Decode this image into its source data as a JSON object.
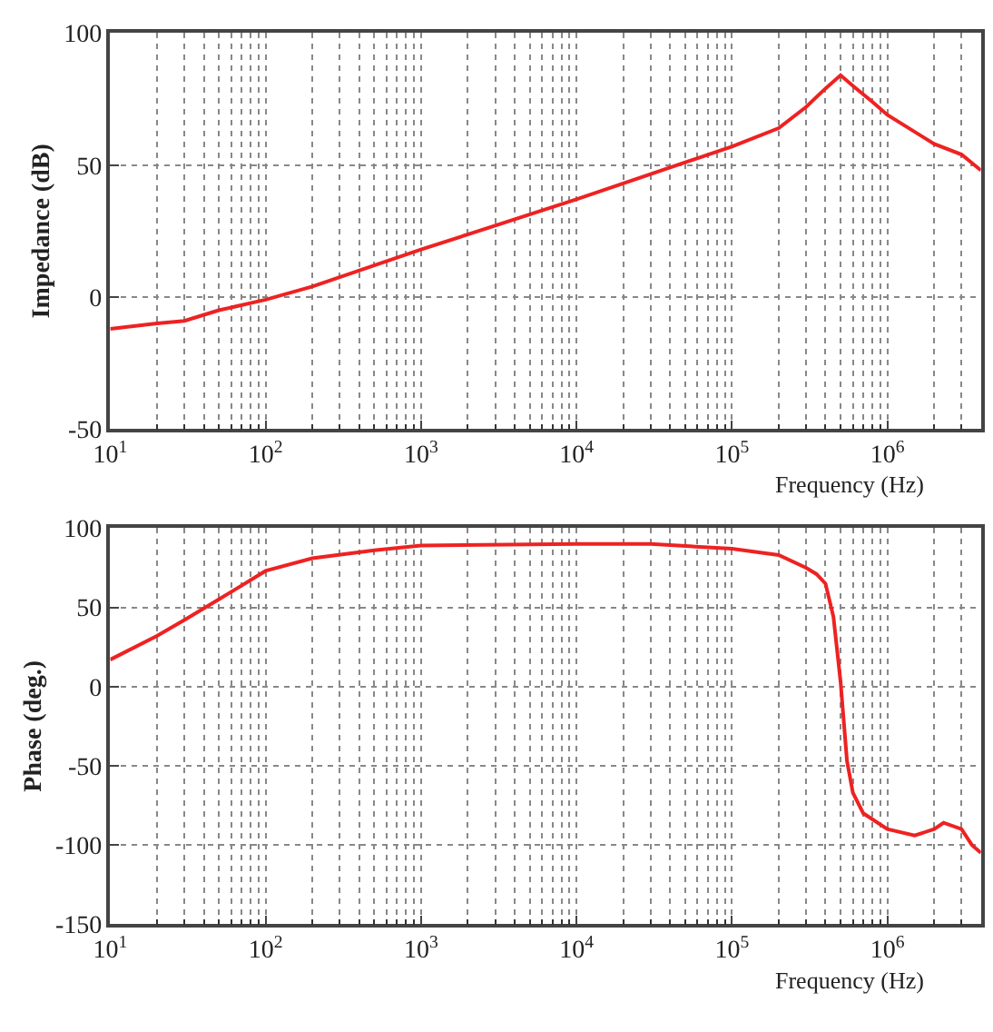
{
  "chart_data": [
    {
      "type": "line",
      "xlabel": "Frequency (Hz)",
      "ylabel": "Impedance (dB)",
      "log": "x",
      "grid": true,
      "line_style": "solid",
      "marker": "none",
      "x": [
        10,
        20,
        30,
        50,
        100,
        200,
        500,
        1000,
        10000,
        100000,
        200000,
        300000,
        400000,
        500000,
        600000,
        800000,
        1000000,
        2000000,
        3000000,
        4000000
      ],
      "series": [
        {
          "color": "#ee2222",
          "values": [
            -12,
            -10,
            -9,
            -5,
            -1,
            4,
            12,
            18,
            37,
            57,
            64,
            72,
            79,
            84,
            80,
            74,
            69,
            58,
            54,
            48
          ]
        }
      ],
      "xlim": [
        10,
        4000000
      ],
      "ylim": [
        -50,
        100
      ],
      "xticks": [
        {
          "value": 10,
          "label": "10$^{1}$"
        },
        {
          "value": 100,
          "label": "10$^{2}$"
        },
        {
          "value": 1000,
          "label": "10$^{3}$"
        },
        {
          "value": 10000,
          "label": "10$^{4}$"
        },
        {
          "value": 100000,
          "label": "10$^{5}$"
        },
        {
          "value": 1000000,
          "label": "10$^{6}$"
        }
      ],
      "yticks": [
        -50,
        0,
        50,
        100
      ]
    },
    {
      "type": "line",
      "xlabel": "Frequency (Hz)",
      "ylabel": "Phase (deg.)",
      "log": "x",
      "grid": true,
      "line_style": "solid",
      "marker": "none",
      "x": [
        10,
        20,
        30,
        50,
        100,
        200,
        500,
        1000,
        10000,
        30000,
        100000,
        200000,
        300000,
        350000,
        400000,
        450000,
        500000,
        550000,
        600000,
        700000,
        1000000,
        1500000,
        2000000,
        2300000,
        3000000,
        3500000,
        4000000
      ],
      "series": [
        {
          "color": "#ee2222",
          "values": [
            17,
            32,
            42,
            55,
            73,
            81,
            86,
            89,
            90,
            90,
            87,
            83,
            75,
            71,
            65,
            44,
            3,
            -47,
            -67,
            -80,
            -90,
            -94,
            -90,
            -86,
            -90,
            -100,
            -105
          ]
        }
      ],
      "xlim": [
        10,
        4000000
      ],
      "ylim": [
        -150,
        100
      ],
      "xticks": [
        {
          "value": 10,
          "label": "10$^{1}$"
        },
        {
          "value": 100,
          "label": "10$^{2}$"
        },
        {
          "value": 1000,
          "label": "10$^{3}$"
        },
        {
          "value": 10000,
          "label": "10$^{4}$"
        },
        {
          "value": 100000,
          "label": "10$^{5}$"
        },
        {
          "value": 1000000,
          "label": "10$^{6}$"
        }
      ],
      "yticks": [
        -150,
        -100,
        -50,
        0,
        50,
        100
      ]
    }
  ]
}
